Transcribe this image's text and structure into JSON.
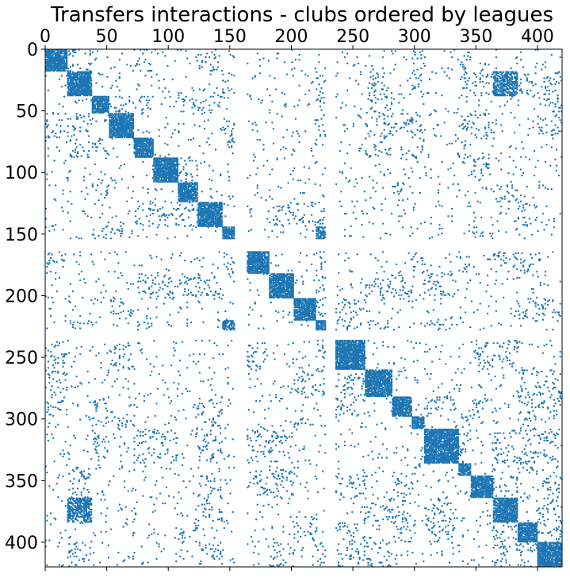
{
  "chart_data": {
    "type": "scatter",
    "title": "Transfers interactions - clubs ordered by leagues",
    "xlabel": "",
    "ylabel": "",
    "xlim": [
      0,
      420
    ],
    "ylim": [
      420,
      0
    ],
    "x_axis_position": "top",
    "y_inverted": true,
    "grid": false,
    "legend": "none",
    "marker_color": "#1f77b4",
    "x_ticks": [
      "0",
      "50",
      "100",
      "150",
      "200",
      "250",
      "300",
      "350",
      "400"
    ],
    "y_ticks": [
      "0",
      "50",
      "100",
      "150",
      "200",
      "250",
      "300",
      "350",
      "400"
    ],
    "leagues": [
      {
        "start": 0,
        "end": 18
      },
      {
        "start": 18,
        "end": 38
      },
      {
        "start": 38,
        "end": 52
      },
      {
        "start": 52,
        "end": 72
      },
      {
        "start": 72,
        "end": 88
      },
      {
        "start": 88,
        "end": 108
      },
      {
        "start": 108,
        "end": 124
      },
      {
        "start": 124,
        "end": 144
      },
      {
        "start": 144,
        "end": 154
      },
      {
        "start": 164,
        "end": 182
      },
      {
        "start": 182,
        "end": 202
      },
      {
        "start": 202,
        "end": 220
      },
      {
        "start": 220,
        "end": 228
      },
      {
        "start": 236,
        "end": 260
      },
      {
        "start": 260,
        "end": 282
      },
      {
        "start": 282,
        "end": 298
      },
      {
        "start": 298,
        "end": 308
      },
      {
        "start": 308,
        "end": 336
      },
      {
        "start": 336,
        "end": 346
      },
      {
        "start": 346,
        "end": 364
      },
      {
        "start": 364,
        "end": 384
      },
      {
        "start": 384,
        "end": 400
      },
      {
        "start": 400,
        "end": 420
      }
    ],
    "dense_offdiag_blocks": [
      {
        "x": [
          364,
          384
        ],
        "y": [
          18,
          38
        ]
      },
      {
        "x": [
          18,
          38
        ],
        "y": [
          364,
          384
        ]
      },
      {
        "x": [
          220,
          228
        ],
        "y": [
          144,
          154
        ]
      },
      {
        "x": [
          144,
          154
        ],
        "y": [
          220,
          228
        ]
      }
    ]
  }
}
